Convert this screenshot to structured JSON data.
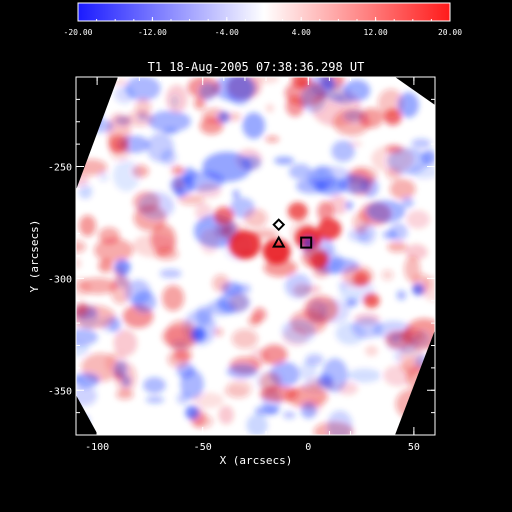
{
  "title": "T1  18-Aug-2005 07:38:36.298 UT",
  "colorbar": {
    "min_color": "#1a1aff",
    "mid_color": "#ffffff",
    "max_color": "#ff1a1a",
    "tick_labels": [
      "-20.00",
      "-12.00",
      "-4.00",
      "4.00",
      "12.00",
      "20.00"
    ],
    "tick_values": [
      -20,
      -12,
      -4,
      4,
      12,
      20
    ],
    "range": [
      -20,
      20
    ]
  },
  "axes": {
    "xlabel": "X (arcsecs)",
    "ylabel": "Y (arcsecs)",
    "x_ticks": [
      "-100",
      "-50",
      "0",
      "50"
    ],
    "x_tick_values": [
      -100,
      -50,
      0,
      50
    ],
    "y_ticks": [
      "-250",
      "-300",
      "-350"
    ],
    "y_tick_values": [
      -250,
      -300,
      -350
    ],
    "xlim": [
      -110,
      60
    ],
    "ylim": [
      -370,
      -210
    ]
  },
  "markers": [
    {
      "shape": "diamond",
      "x": -14,
      "y": -276
    },
    {
      "shape": "triangle",
      "x": -14,
      "y": -284
    },
    {
      "shape": "square",
      "x": -1,
      "y": -284
    }
  ],
  "colors": {
    "background": "#000000",
    "plot_background": "#ffffff",
    "text": "#ffffff",
    "positive": "#e8191e",
    "negative": "#1a3cff"
  }
}
